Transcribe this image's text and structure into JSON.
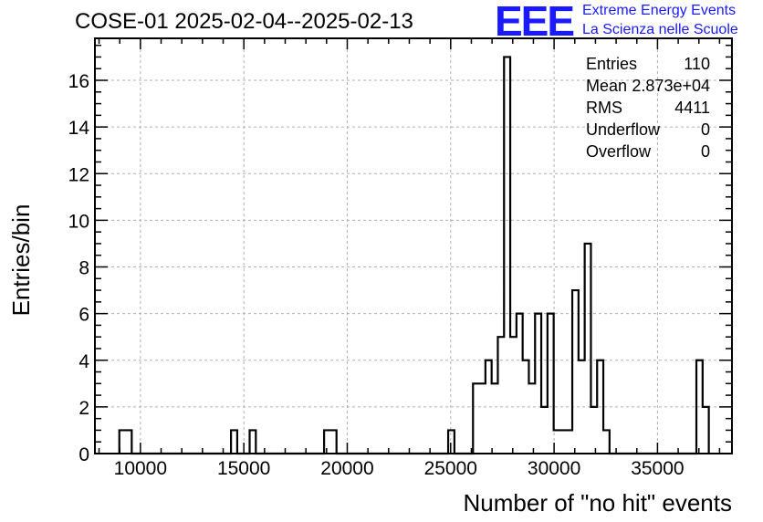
{
  "header": {
    "title": "COSE-01 2025-02-04--2025-02-13",
    "logo_text": "EEE",
    "logo_line1": "Extreme Energy Events",
    "logo_line2": "La Scienza nelle Scuole"
  },
  "stats": {
    "entries_label": "Entries",
    "entries_value": "110",
    "mean_label": "Mean",
    "mean_value": "2.873e+04",
    "rms_label": "RMS",
    "rms_value": "4411",
    "underflow_label": "Underflow",
    "underflow_value": "0",
    "overflow_label": "Overflow",
    "overflow_value": "0"
  },
  "chart_data": {
    "type": "bar",
    "histogram": true,
    "xlabel": "Number of \"no hit\" events",
    "ylabel": "Entries/bin",
    "xlim": [
      7800,
      38600
    ],
    "ylim": [
      0,
      17.8
    ],
    "xticks": [
      10000,
      15000,
      20000,
      25000,
      30000,
      35000
    ],
    "xtick_labels": [
      "10000",
      "15000",
      "20000",
      "25000",
      "30000",
      "35000"
    ],
    "yticks": [
      0,
      2,
      4,
      6,
      8,
      10,
      12,
      14,
      16
    ],
    "ytick_labels": [
      "0",
      "2",
      "4",
      "6",
      "8",
      "10",
      "12",
      "14",
      "16"
    ],
    "grid": true,
    "line_color": "#000000",
    "bin_width": 300,
    "bin_starts": [
      8980,
      9280,
      9580,
      9880,
      10180,
      10480,
      10780,
      11080,
      11380,
      11680,
      11980,
      12280,
      12580,
      12880,
      13180,
      13480,
      13780,
      14080,
      14380,
      14680,
      14980,
      15280,
      15580,
      15880,
      16180,
      16480,
      16780,
      17080,
      17380,
      17680,
      17980,
      18280,
      18580,
      18880,
      19180,
      19480,
      19780,
      20080,
      20380,
      20680,
      20980,
      21280,
      21580,
      21880,
      22180,
      22480,
      22780,
      23080,
      23380,
      23680,
      23980,
      24280,
      24580,
      24880,
      25180,
      25480,
      25780,
      26080,
      26380,
      26680,
      26980,
      27280,
      27580,
      27880,
      28180,
      28480,
      28780,
      29080,
      29380,
      29680,
      29980,
      30280,
      30580,
      30880,
      31180,
      31480,
      31780,
      32080,
      32380,
      32680,
      32980,
      33280,
      33580,
      33880,
      34180,
      34480,
      34780,
      35080,
      35380,
      35680,
      35980,
      36280,
      36580,
      36880,
      37180
    ],
    "values": [
      1,
      1,
      0,
      0,
      0,
      0,
      0,
      0,
      0,
      0,
      0,
      0,
      0,
      0,
      0,
      0,
      0,
      0,
      1,
      0,
      0,
      1,
      0,
      0,
      0,
      0,
      0,
      0,
      0,
      0,
      0,
      0,
      0,
      1,
      1,
      0,
      0,
      0,
      0,
      0,
      0,
      0,
      0,
      0,
      0,
      0,
      0,
      0,
      0,
      0,
      0,
      0,
      0,
      1,
      0,
      0,
      0,
      3,
      3,
      4,
      3,
      5,
      17,
      5,
      6,
      4,
      3,
      6,
      2,
      6,
      1,
      1,
      1,
      7,
      4,
      9,
      2,
      4,
      1,
      0,
      0,
      0,
      0,
      0,
      0,
      0,
      0,
      0,
      0,
      0,
      0,
      0,
      0,
      4,
      2
    ]
  }
}
